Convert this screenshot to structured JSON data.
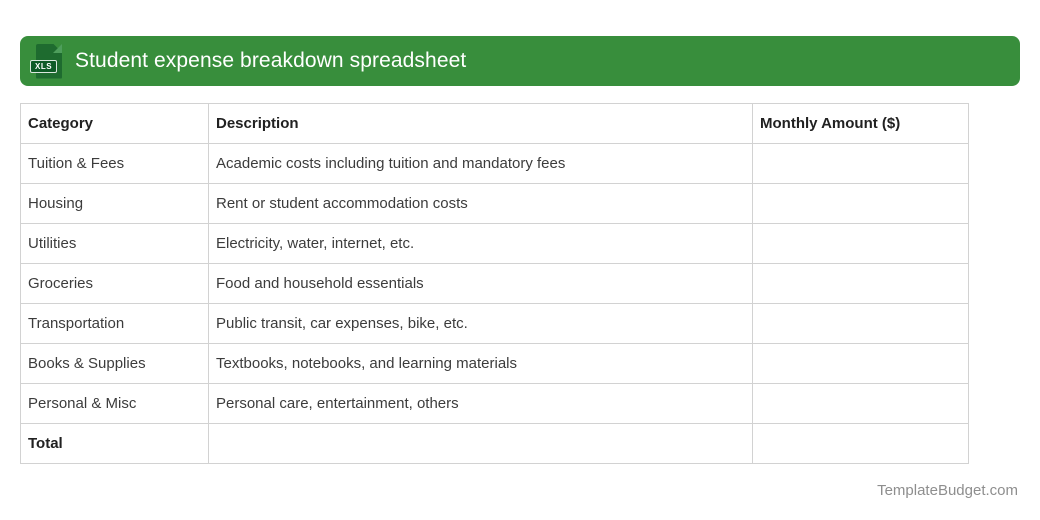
{
  "banner": {
    "title": "Student expense breakdown spreadsheet",
    "icon_label": "XLS"
  },
  "table": {
    "columns": [
      "Category",
      "Description",
      "Monthly Amount ($)"
    ],
    "rows": [
      {
        "category": "Tuition & Fees",
        "description": "Academic costs including tuition and mandatory fees",
        "amount": ""
      },
      {
        "category": "Housing",
        "description": "Rent or student accommodation costs",
        "amount": ""
      },
      {
        "category": "Utilities",
        "description": "Electricity, water, internet, etc.",
        "amount": ""
      },
      {
        "category": "Groceries",
        "description": "Food and household essentials",
        "amount": ""
      },
      {
        "category": "Transportation",
        "description": "Public transit, car expenses, bike, etc.",
        "amount": ""
      },
      {
        "category": "Books & Supplies",
        "description": "Textbooks, notebooks, and learning materials",
        "amount": ""
      },
      {
        "category": "Personal & Misc",
        "description": "Personal care, entertainment, others",
        "amount": ""
      }
    ],
    "total_row": {
      "label": "Total",
      "description": "",
      "amount": ""
    }
  },
  "footer": {
    "text": "TemplateBudget.com"
  },
  "colors": {
    "banner_green": "#388E3C",
    "icon_green_dark": "#1E6B2F",
    "icon_green_fold": "#4E9E5C",
    "icon_label_green": "#0E5A26",
    "border_gray": "#D2D2D2",
    "header_text": "#212121",
    "body_text": "#3C3C3C",
    "footer_gray": "#8E8E8E"
  }
}
